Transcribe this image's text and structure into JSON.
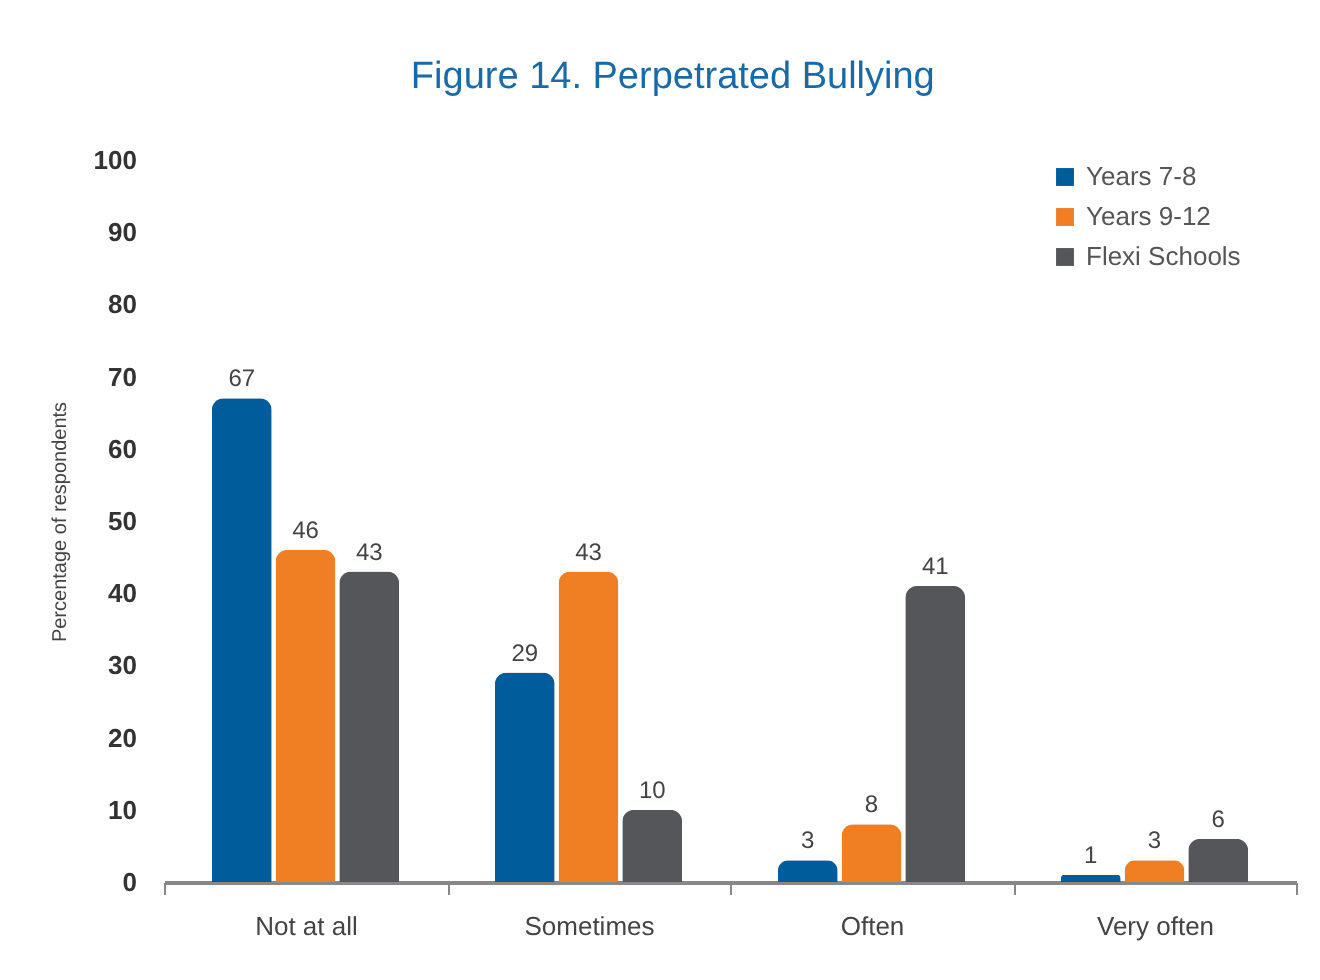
{
  "chart_data": {
    "type": "bar",
    "title": "Figure 14. Perpetrated Bullying",
    "ylabel": "Percentage of respondents",
    "categories": [
      "Not at all",
      "Sometimes",
      "Often",
      "Very often"
    ],
    "series": [
      {
        "name": "Years 7-8",
        "color": "#015c9b",
        "values": [
          67,
          29,
          3,
          1
        ]
      },
      {
        "name": "Years 9-12",
        "color": "#ef7f22",
        "values": [
          46,
          43,
          8,
          3
        ]
      },
      {
        "name": "Flexi Schools",
        "color": "#55565a",
        "values": [
          43,
          10,
          41,
          6
        ]
      }
    ],
    "ylim": [
      0,
      100
    ],
    "yticks": [
      0,
      10,
      20,
      30,
      40,
      50,
      60,
      70,
      80,
      90,
      100
    ],
    "grid": false,
    "legend": "top right",
    "data_labels": true
  }
}
